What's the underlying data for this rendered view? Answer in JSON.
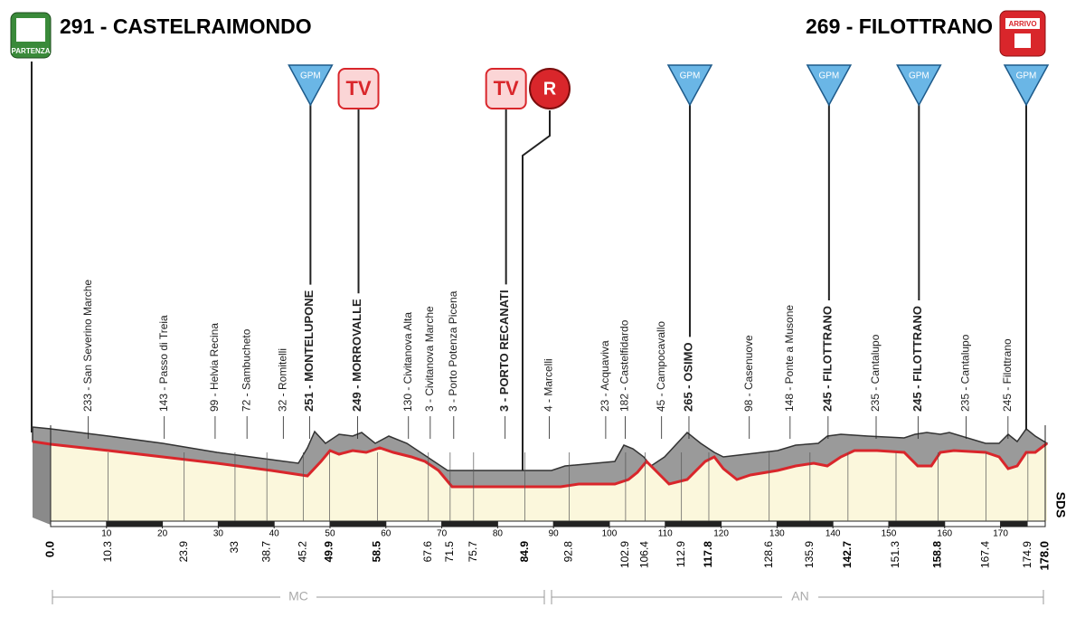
{
  "chart_data": {
    "type": "profile",
    "start": {
      "title": "291 - CASTELRAIMONDO",
      "badge": "PARTENZA"
    },
    "finish": {
      "title": "269 - FILOTTRANO",
      "badge": "ARRIVO"
    },
    "xlim": [
      0,
      178
    ],
    "xticks": [
      10,
      20,
      30,
      40,
      50,
      60,
      70,
      80,
      90,
      100,
      110,
      120,
      130,
      140,
      150,
      160,
      170
    ],
    "start_km": {
      "value": 0,
      "label": "0.0"
    },
    "finish_km": {
      "value": 178,
      "label": "178.0"
    },
    "waypoints": [
      {
        "km": 10.3,
        "label": "233 - San Severino Marche",
        "bold": false
      },
      {
        "km": 23.9,
        "label": "143 - Passo di Treia",
        "bold": false
      },
      {
        "km": 33.0,
        "label": "99 - Helvia Recina",
        "bold": false
      },
      {
        "km": 38.7,
        "label": "72 - Sambucheto",
        "bold": false
      },
      {
        "km": 45.2,
        "label": "32 - Romitelli",
        "bold": false
      },
      {
        "km": 49.9,
        "label": "251 - MONTELUPONE",
        "bold": true
      },
      {
        "km": 58.5,
        "label": "249 - MORROVALLE",
        "bold": true
      },
      {
        "km": 67.6,
        "label": "130 - Civitanova Alta",
        "bold": false
      },
      {
        "km": 71.5,
        "label": "3 - Civitanova Marche",
        "bold": false
      },
      {
        "km": 75.7,
        "label": "3 - Porto Potenza Picena",
        "bold": false
      },
      {
        "km": 84.9,
        "label": "3 - PORTO RECANATI",
        "bold": true
      },
      {
        "km": 92.8,
        "label": "4 - Marcelli",
        "bold": false
      },
      {
        "km": 102.9,
        "label": "23 - Acquaviva",
        "bold": false
      },
      {
        "km": 106.4,
        "label": "182 - Castelfidardo",
        "bold": false
      },
      {
        "km": 112.9,
        "label": "45 - Campocavallo",
        "bold": false
      },
      {
        "km": 117.8,
        "label": "265 - OSIMO",
        "bold": true
      },
      {
        "km": 128.6,
        "label": "98 - Casenuove",
        "bold": false
      },
      {
        "km": 135.9,
        "label": "148 - Ponte a Musone",
        "bold": false
      },
      {
        "km": 142.7,
        "label": "245 - FILOTTRANO",
        "bold": true
      },
      {
        "km": 151.3,
        "label": "235 - Cantalupo",
        "bold": false
      },
      {
        "km": 158.8,
        "label": "245 - FILOTTRANO",
        "bold": true
      },
      {
        "km": 167.4,
        "label": "235 - Cantalupo",
        "bold": false
      },
      {
        "km": 174.9,
        "label": "245 - Filottrano",
        "bold": false
      }
    ],
    "markers": [
      {
        "km": 49.9,
        "label": "GPM"
      },
      {
        "km": 58.5,
        "label": "TV"
      },
      {
        "km": 84.9,
        "label": "TV"
      },
      {
        "km": 117.8,
        "label": "GPM"
      },
      {
        "km": 142.7,
        "label": "GPM"
      },
      {
        "km": 158.8,
        "label": "GPM"
      },
      {
        "km": 178,
        "label": "GPM"
      }
    ],
    "refuel": "R",
    "provinces": [
      "MC",
      "AN"
    ],
    "sponsor": "SDS"
  }
}
